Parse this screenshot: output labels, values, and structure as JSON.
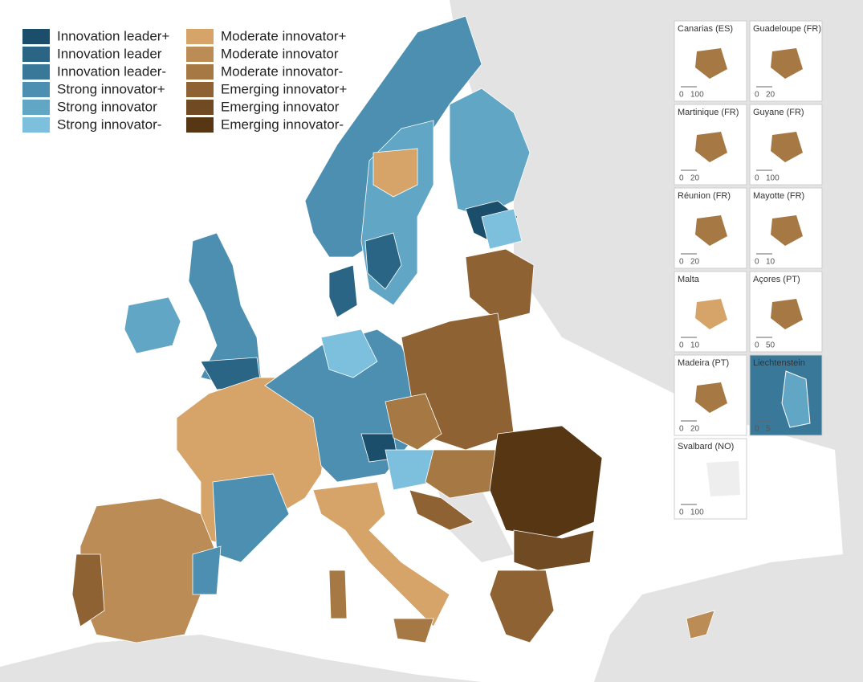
{
  "legend": [
    {
      "label": "Innovation leader+",
      "color": "#1a4e6a"
    },
    {
      "label": "Innovation leader",
      "color": "#2b6585"
    },
    {
      "label": "Innovation leader-",
      "color": "#3a7899"
    },
    {
      "label": "Strong innovator+",
      "color": "#4d8fb0"
    },
    {
      "label": "Strong innovator",
      "color": "#62a6c6"
    },
    {
      "label": "Strong innovator-",
      "color": "#7dc0dd"
    },
    {
      "label": "Moderate innovator+",
      "color": "#d6a468"
    },
    {
      "label": "Moderate innovator",
      "color": "#bb8c55"
    },
    {
      "label": "Moderate innovator-",
      "color": "#a67843"
    },
    {
      "label": "Emerging innovator+",
      "color": "#8e6232"
    },
    {
      "label": "Emerging innovator",
      "color": "#704a22"
    },
    {
      "label": "Emerging innovator-",
      "color": "#573614"
    }
  ],
  "insets": [
    {
      "title": "Canarias (ES)",
      "scale": [
        0,
        100
      ]
    },
    {
      "title": "Guadeloupe (FR)",
      "scale": [
        0,
        20
      ]
    },
    {
      "title": "Martinique (FR)",
      "scale": [
        0,
        20
      ]
    },
    {
      "title": "Guyane (FR)",
      "scale": [
        0,
        100
      ]
    },
    {
      "title": "Réunion (FR)",
      "scale": [
        0,
        20
      ]
    },
    {
      "title": "Mayotte (FR)",
      "scale": [
        0,
        10
      ]
    },
    {
      "title": "Malta",
      "scale": [
        0,
        10
      ]
    },
    {
      "title": "Açores (PT)",
      "scale": [
        0,
        50
      ]
    },
    {
      "title": "Madeira (PT)",
      "scale": [
        0,
        20
      ]
    },
    {
      "title": "Liechtenstein",
      "scale": [
        0,
        5
      ]
    },
    {
      "title": "Svalbard (NO)",
      "scale": [
        0,
        100
      ]
    }
  ]
}
